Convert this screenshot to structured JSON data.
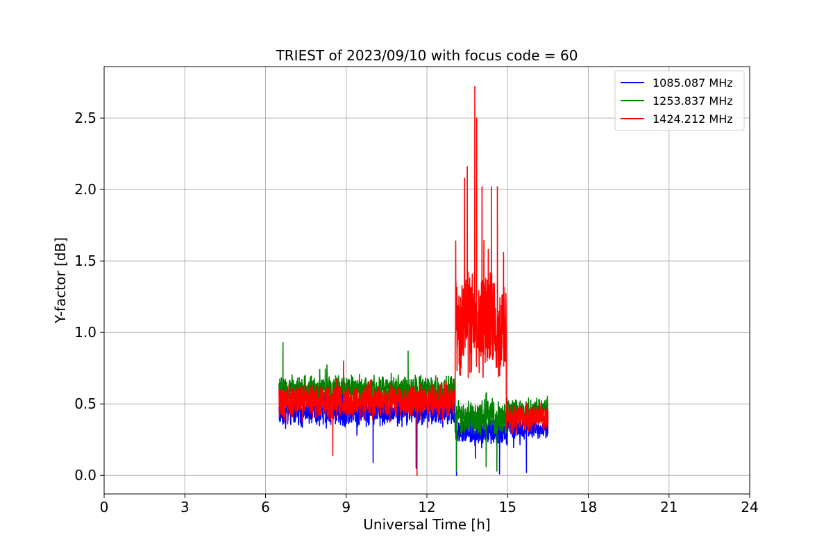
{
  "chart_data": {
    "type": "line",
    "title": "TRIEST of 2023/09/10 with focus code = 60",
    "xlabel": "Universal Time [h]",
    "ylabel": "Y-factor [dB]",
    "xlim": [
      0,
      24
    ],
    "ylim": [
      -0.13,
      2.86
    ],
    "xticks": [
      0,
      3,
      6,
      9,
      12,
      15,
      18,
      21,
      24
    ],
    "xtick_labels": [
      "0",
      "3",
      "6",
      "9",
      "12",
      "15",
      "18",
      "21",
      "24"
    ],
    "yticks": [
      0.0,
      0.5,
      1.0,
      1.5,
      2.0,
      2.5
    ],
    "ytick_labels": [
      "0.0",
      "0.5",
      "1.0",
      "1.5",
      "2.0",
      "2.5"
    ],
    "grid": true,
    "legend_position": "top-right",
    "series": [
      {
        "name": "1085.087 MHz",
        "color": "#0000ff",
        "segments": [
          {
            "x0": 6.5,
            "x1": 13.05,
            "center": 0.46,
            "noise": 0.09,
            "min": 0.08,
            "max": 0.66
          },
          {
            "x0": 13.05,
            "x1": 15.0,
            "center": 0.3,
            "noise": 0.07,
            "min": 0.0,
            "max": 0.5
          },
          {
            "x0": 15.0,
            "x1": 16.5,
            "center": 0.33,
            "noise": 0.06,
            "min": 0.02,
            "max": 0.5
          }
        ],
        "spikes": [
          [
            10.0,
            0.09
          ],
          [
            11.6,
            0.05
          ],
          [
            13.1,
            0.0
          ],
          [
            13.8,
            0.12
          ],
          [
            14.7,
            0.01
          ],
          [
            15.7,
            0.02
          ]
        ]
      },
      {
        "name": "1253.837 MHz",
        "color": "#008000",
        "segments": [
          {
            "x0": 6.5,
            "x1": 13.05,
            "center": 0.6,
            "noise": 0.08,
            "min": 0.3,
            "max": 0.93
          },
          {
            "x0": 13.05,
            "x1": 15.0,
            "center": 0.4,
            "noise": 0.1,
            "min": 0.02,
            "max": 0.66
          },
          {
            "x0": 15.0,
            "x1": 16.5,
            "center": 0.45,
            "noise": 0.07,
            "min": 0.2,
            "max": 0.62
          }
        ],
        "spikes": [
          [
            6.65,
            0.93
          ],
          [
            11.3,
            0.87
          ],
          [
            13.1,
            0.03
          ],
          [
            14.6,
            0.03
          ],
          [
            14.2,
            0.06
          ]
        ]
      },
      {
        "name": "1424.212 MHz",
        "color": "#ff0000",
        "segments": [
          {
            "x0": 6.5,
            "x1": 13.05,
            "center": 0.52,
            "noise": 0.09,
            "min": 0.15,
            "max": 0.8
          },
          {
            "x0": 13.05,
            "x1": 14.95,
            "center": 1.05,
            "noise": 0.3,
            "min": 0.38,
            "max": 2.72
          },
          {
            "x0": 14.95,
            "x1": 16.5,
            "center": 0.4,
            "noise": 0.08,
            "min": 0.14,
            "max": 0.58
          }
        ],
        "spikes": [
          [
            11.63,
            0.0
          ],
          [
            13.07,
            1.64
          ],
          [
            13.4,
            2.08
          ],
          [
            13.5,
            2.16
          ],
          [
            13.78,
            2.72
          ],
          [
            13.85,
            2.5
          ],
          [
            14.05,
            2.02
          ],
          [
            14.4,
            2.02
          ],
          [
            14.62,
            2.02
          ],
          [
            14.85,
            1.56
          ],
          [
            8.9,
            0.8
          ],
          [
            8.5,
            0.14
          ]
        ]
      }
    ]
  }
}
